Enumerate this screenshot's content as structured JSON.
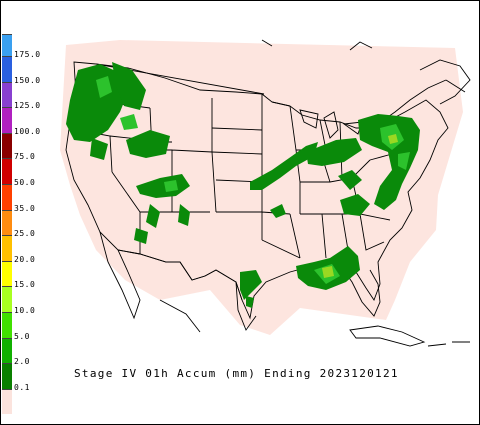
{
  "caption": "Stage IV 01h Accum (mm) Ending 2023120121",
  "legend": {
    "bins": [
      {
        "label": "175.0",
        "color": "#3aa0f0"
      },
      {
        "label": "150.0",
        "color": "#2a60e0"
      },
      {
        "label": "125.0",
        "color": "#8840d0"
      },
      {
        "label": "100.0",
        "color": "#b020c0"
      },
      {
        "label": "75.0",
        "color": "#8a0000"
      },
      {
        "label": "50.0",
        "color": "#d00000"
      },
      {
        "label": "35.0",
        "color": "#ff4000"
      },
      {
        "label": "25.0",
        "color": "#ff8c10"
      },
      {
        "label": "20.0",
        "color": "#ffc000"
      },
      {
        "label": "15.0",
        "color": "#ffff00"
      },
      {
        "label": "10.0",
        "color": "#a8ff20"
      },
      {
        "label": "5.0",
        "color": "#40e000"
      },
      {
        "label": "2.0",
        "color": "#10b000"
      },
      {
        "label": "0.1",
        "color": "#0a8000"
      },
      {
        "label": "",
        "color": "#fbe3dd"
      }
    ]
  },
  "colors": {
    "analysis_domain": "#fde5df",
    "light_precip": "#0a8a0a",
    "moderate_precip": "#2cc22c",
    "heavy_precip": "#9ad822",
    "boundaries": "#000000"
  }
}
